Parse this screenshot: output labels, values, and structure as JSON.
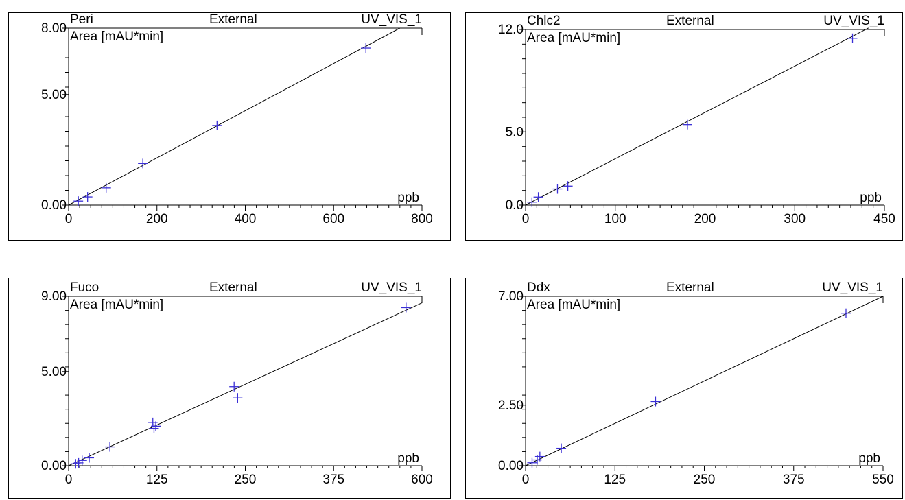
{
  "chart_data": [
    {
      "type": "scatter",
      "name": "Peri",
      "method": "External",
      "channel": "UV_VIS_1",
      "ylabel": "Area  [mAU*min]",
      "xlabel": "ppb",
      "xlim": [
        0,
        800
      ],
      "ylim": [
        0,
        8
      ],
      "xticks": [
        "0",
        "200",
        "400",
        "600",
        "800"
      ],
      "yticks": [
        {
          "v": 0,
          "t": "0.00"
        },
        {
          "v": 5,
          "t": "5.00"
        },
        {
          "v": 8,
          "t": "8.00"
        }
      ],
      "points": [
        [
          22,
          0.18
        ],
        [
          43,
          0.37
        ],
        [
          85,
          0.78
        ],
        [
          168,
          1.88
        ],
        [
          336,
          3.6
        ],
        [
          673,
          7.1
        ]
      ],
      "fit": [
        [
          0,
          0
        ],
        [
          750,
          8
        ]
      ]
    },
    {
      "type": "scatter",
      "name": "Chlc2",
      "method": "External",
      "channel": "UV_VIS_1",
      "ylabel": "Area  [mAU*min]",
      "xlabel": "ppb",
      "xlim": [
        0,
        450
      ],
      "ylim": [
        0,
        12
      ],
      "xticks": [
        "0",
        "100",
        "200",
        "300",
        "450"
      ],
      "yticks": [
        {
          "v": 0,
          "t": "0.0"
        },
        {
          "v": 5,
          "t": "5.0"
        },
        {
          "v": 12,
          "t": "12.0"
        }
      ],
      "points": [
        [
          8,
          0.2
        ],
        [
          16,
          0.55
        ],
        [
          40,
          1.1
        ],
        [
          53,
          1.3
        ],
        [
          203,
          5.5
        ],
        [
          410,
          11.4
        ]
      ],
      "fit": [
        [
          0,
          0
        ],
        [
          430,
          12.1
        ]
      ]
    },
    {
      "type": "scatter",
      "name": "Fuco",
      "method": "External",
      "channel": "UV_VIS_1",
      "ylabel": "Area  [mAU*min]",
      "xlabel": "ppb",
      "xlim": [
        0,
        600
      ],
      "ylim": [
        0,
        9
      ],
      "xticks": [
        "0",
        "125",
        "250",
        "375",
        "600"
      ],
      "yticks": [
        {
          "v": 0,
          "t": "0.00"
        },
        {
          "v": 5,
          "t": "5.00"
        },
        {
          "v": 9,
          "t": "9.00"
        }
      ],
      "points": [
        [
          12,
          0.1
        ],
        [
          17,
          0.15
        ],
        [
          23,
          0.28
        ],
        [
          35,
          0.42
        ],
        [
          70,
          1.0
        ],
        [
          143,
          2.3
        ],
        [
          145,
          1.98
        ],
        [
          148,
          2.1
        ],
        [
          281,
          4.2
        ],
        [
          287,
          3.6
        ],
        [
          573,
          8.4
        ]
      ],
      "fit": [
        [
          0,
          0
        ],
        [
          600,
          8.65
        ]
      ]
    },
    {
      "type": "scatter",
      "name": "Ddx",
      "method": "External",
      "channel": "UV_VIS_1",
      "ylabel": "Area  [mAU*min]",
      "xlabel": "ppb",
      "xlim": [
        0,
        550
      ],
      "ylim": [
        0,
        7
      ],
      "xticks": [
        "0",
        "125",
        "250",
        "375",
        "550"
      ],
      "yticks": [
        {
          "v": 0,
          "t": "0.00"
        },
        {
          "v": 2.5,
          "t": "2.50"
        },
        {
          "v": 7,
          "t": "7.00"
        }
      ],
      "points": [
        [
          10,
          0.12
        ],
        [
          18,
          0.24
        ],
        [
          22,
          0.38
        ],
        [
          55,
          0.72
        ],
        [
          200,
          2.65
        ],
        [
          493,
          6.3
        ]
      ],
      "fit": [
        [
          0,
          0
        ],
        [
          550,
          7
        ]
      ]
    }
  ]
}
